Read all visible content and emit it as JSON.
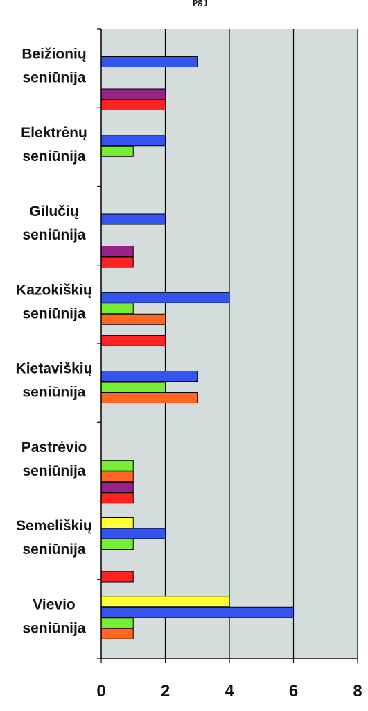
{
  "header_fragment": "pg        j",
  "chart_data": {
    "type": "bar",
    "orientation": "horizontal",
    "categories": [
      [
        "Beižionių",
        "seniūnija"
      ],
      [
        "Elektrėnų",
        "seniūnija"
      ],
      [
        "Gilučių",
        "seniūnija"
      ],
      [
        "Kazokiškių",
        "seniūnija"
      ],
      [
        "Kietaviškių",
        "seniūnija"
      ],
      [
        "Pastrėvio",
        "seniūnija"
      ],
      [
        "Semeliškių",
        "seniūnija"
      ],
      [
        "Vievio",
        "seniūnija"
      ]
    ],
    "series": [
      {
        "color": "#ffff33",
        "values": [
          0,
          0,
          0,
          0,
          0,
          0,
          1,
          4
        ]
      },
      {
        "color": "#3355ee",
        "values": [
          3,
          2,
          2,
          4,
          3,
          0,
          2,
          6
        ]
      },
      {
        "color": "#77ee33",
        "values": [
          0,
          1,
          0,
          1,
          2,
          1,
          1,
          1
        ]
      },
      {
        "color": "#ff6622",
        "values": [
          0,
          0,
          0,
          2,
          3,
          1,
          0,
          1
        ]
      },
      {
        "color": "#992288",
        "values": [
          2,
          0,
          1,
          0,
          0,
          1,
          0,
          0
        ]
      },
      {
        "color": "#ff2222",
        "values": [
          2,
          0,
          1,
          2,
          0,
          1,
          1,
          0
        ]
      }
    ],
    "xlim": [
      0,
      8
    ],
    "xticks": [
      "0",
      "2",
      "4",
      "6",
      "8"
    ],
    "grid": true,
    "plot_background": "#d4dcdc"
  }
}
